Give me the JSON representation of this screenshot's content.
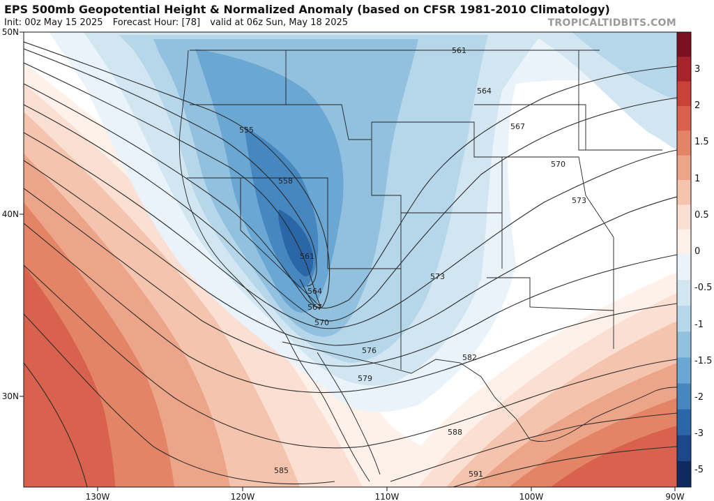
{
  "header": {
    "title": "EPS 500mb Geopotential Height & Normalized Anomaly (based on CFSR 1981-2010 Climatology)",
    "init": "Init: 00z May 15 2025",
    "forecast_hour": "Forecast Hour: [78]",
    "valid": "valid at 06z Sun, May 18 2025",
    "brand": "TROPICALTIDBITS.COM"
  },
  "axes": {
    "lat_labels": [
      "50N",
      "40N",
      "30N"
    ],
    "lon_labels": [
      "130W",
      "120W",
      "110W",
      "100W",
      "90W"
    ]
  },
  "colorbar": {
    "labels": [
      "3",
      "2",
      "1.5",
      "1",
      "0.5",
      "0",
      "-0.5",
      "-1",
      "-1.5",
      "-2",
      "-3",
      "-5"
    ],
    "warm_colors": [
      "#7a1020",
      "#a8242c",
      "#c8423a",
      "#d9624f",
      "#e48467",
      "#eda58a",
      "#f4c4ae",
      "#fadfd2",
      "#fdf1ea"
    ],
    "cool_colors": [
      "#eaf3f9",
      "#d2e6f2",
      "#b6d6ea",
      "#92c1e0",
      "#6aa7d2",
      "#4687c0",
      "#2a66a8",
      "#1a4888",
      "#0e2a5e"
    ]
  },
  "contours": {
    "labels": [
      "561",
      "564",
      "567",
      "570",
      "573",
      "555",
      "558",
      "561",
      "564",
      "567",
      "570",
      "573",
      "576",
      "579",
      "582",
      "585",
      "588",
      "591"
    ]
  }
}
